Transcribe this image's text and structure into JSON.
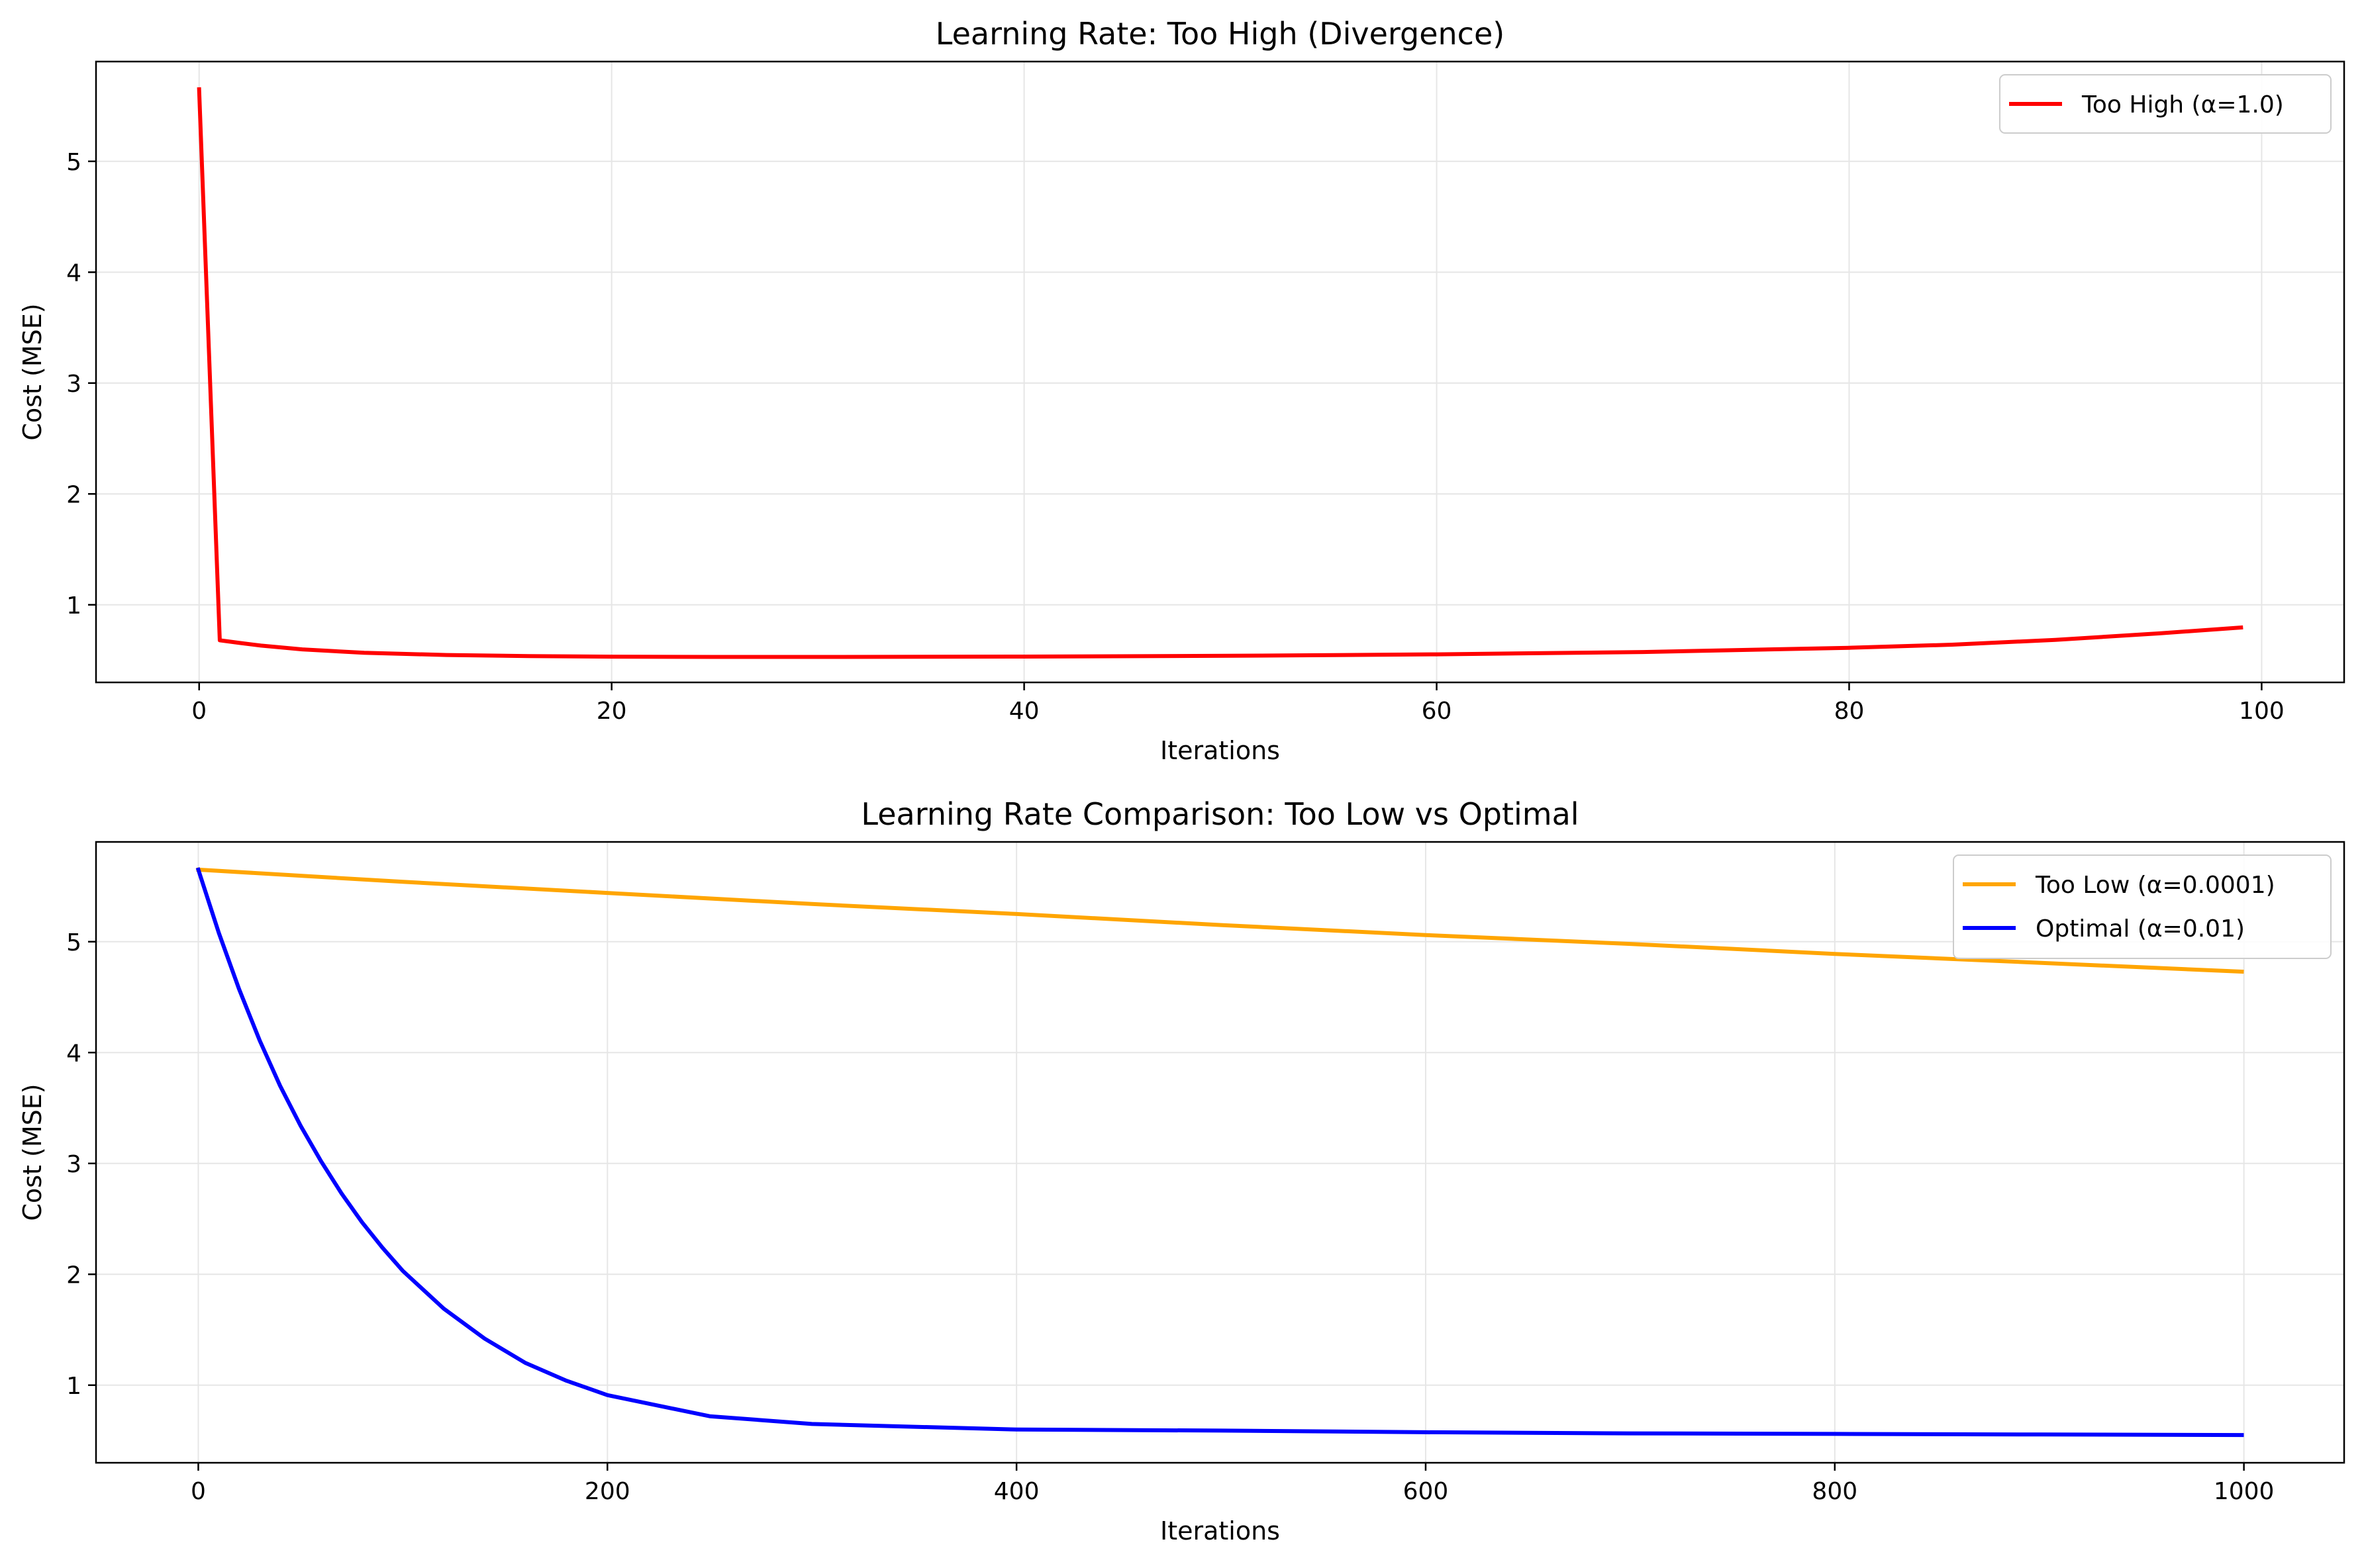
{
  "chart_data": [
    {
      "type": "line",
      "title": "Learning Rate: Too High (Divergence)",
      "xlabel": "Iterations",
      "ylabel": "Cost (MSE)",
      "xlim": [
        -5,
        104
      ],
      "ylim": [
        0.3,
        5.9
      ],
      "xticks": [
        0,
        20,
        40,
        60,
        80,
        100
      ],
      "yticks": [
        1,
        2,
        3,
        4,
        5
      ],
      "grid": true,
      "legend_position": "upper right",
      "series": [
        {
          "name": "Too High (α=1.0)",
          "color": "#ff0000",
          "x": [
            0,
            1,
            2,
            3,
            5,
            8,
            12,
            16,
            20,
            25,
            30,
            40,
            50,
            60,
            70,
            80,
            85,
            90,
            95,
            99
          ],
          "y": [
            5.65,
            0.68,
            0.655,
            0.632,
            0.598,
            0.567,
            0.547,
            0.537,
            0.532,
            0.53,
            0.53,
            0.533,
            0.54,
            0.553,
            0.574,
            0.612,
            0.64,
            0.684,
            0.742,
            0.795
          ]
        }
      ]
    },
    {
      "type": "line",
      "title": "Learning Rate Comparison: Too Low vs Optimal",
      "xlabel": "Iterations",
      "ylabel": "Cost (MSE)",
      "xlim": [
        -50,
        1049
      ],
      "ylim": [
        0.3,
        5.9
      ],
      "xticks": [
        0,
        200,
        400,
        600,
        800,
        1000
      ],
      "yticks": [
        1,
        2,
        3,
        4,
        5
      ],
      "grid": true,
      "legend_position": "upper right",
      "series": [
        {
          "name": "Too Low (α=0.0001)",
          "color": "#ffa500",
          "x": [
            0,
            100,
            200,
            300,
            400,
            500,
            600,
            700,
            800,
            900,
            999
          ],
          "y": [
            5.65,
            5.54,
            5.44,
            5.34,
            5.25,
            5.15,
            5.06,
            4.98,
            4.89,
            4.81,
            4.73
          ]
        },
        {
          "name": "Optimal (α=0.01)",
          "color": "#0000ff",
          "x": [
            0,
            10,
            20,
            30,
            40,
            50,
            60,
            70,
            80,
            90,
            100,
            120,
            140,
            160,
            180,
            200,
            250,
            300,
            400,
            500,
            600,
            700,
            800,
            900,
            999
          ],
          "y": [
            5.65,
            5.08,
            4.57,
            4.11,
            3.7,
            3.34,
            3.02,
            2.73,
            2.47,
            2.24,
            2.03,
            1.69,
            1.42,
            1.2,
            1.04,
            0.91,
            0.72,
            0.65,
            0.6,
            0.59,
            0.575,
            0.565,
            0.56,
            0.555,
            0.55
          ]
        }
      ]
    }
  ]
}
